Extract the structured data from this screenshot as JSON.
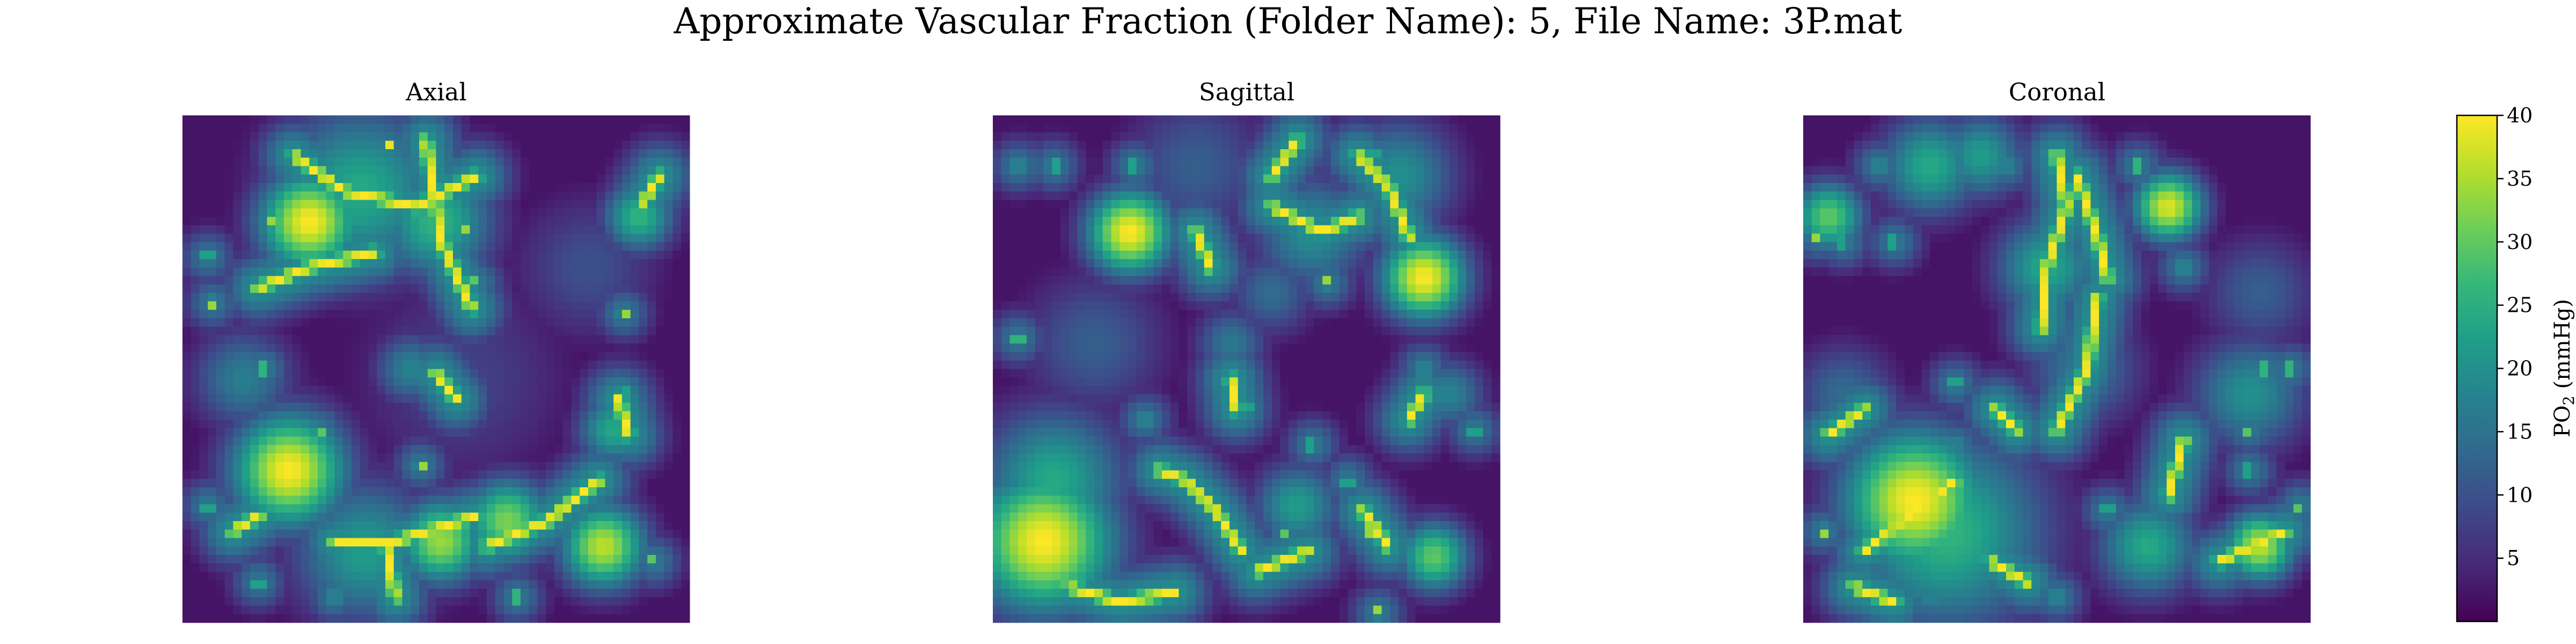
{
  "suptitle": "Approximate Vascular Fraction (Folder Name): 5, File Name: 3P.mat",
  "colors": {
    "colormap": "viridis",
    "viridis_stops": [
      "#440154",
      "#482878",
      "#3e4989",
      "#31688e",
      "#26828e",
      "#1f9e89",
      "#35b779",
      "#6ece58",
      "#b5de2b",
      "#fde725"
    ]
  },
  "chart_data": [
    {
      "type": "heatmap",
      "title": "Axial",
      "colormap": "viridis",
      "value_range": [
        0,
        40
      ],
      "axes_visible": false,
      "blobs": [
        {
          "x": 0.25,
          "y": 0.21,
          "r": 0.07,
          "v": 40
        },
        {
          "x": 0.21,
          "y": 0.7,
          "r": 0.08,
          "v": 40
        },
        {
          "x": 0.51,
          "y": 0.84,
          "r": 0.06,
          "v": 34
        },
        {
          "x": 0.83,
          "y": 0.85,
          "r": 0.06,
          "v": 36
        },
        {
          "x": 0.35,
          "y": 0.15,
          "r": 0.12,
          "v": 24
        },
        {
          "x": 0.5,
          "y": 0.21,
          "r": 0.08,
          "v": 26
        },
        {
          "x": 0.9,
          "y": 0.2,
          "r": 0.05,
          "v": 26
        },
        {
          "x": 0.64,
          "y": 0.8,
          "r": 0.06,
          "v": 32
        },
        {
          "x": 0.36,
          "y": 0.86,
          "r": 0.1,
          "v": 22
        },
        {
          "x": 0.12,
          "y": 0.52,
          "r": 0.07,
          "v": 17
        },
        {
          "x": 0.45,
          "y": 0.5,
          "r": 0.05,
          "v": 18
        },
        {
          "x": 0.85,
          "y": 0.62,
          "r": 0.05,
          "v": 24
        },
        {
          "x": 0.55,
          "y": 0.52,
          "r": 0.15,
          "v": 8
        },
        {
          "x": 0.8,
          "y": 0.3,
          "r": 0.1,
          "v": 10
        }
      ],
      "vessels": [
        [
          0.22,
          0.08,
          0.32,
          0.15,
          0.46,
          0.18,
          0.58,
          0.12
        ],
        [
          0.15,
          0.34,
          0.25,
          0.3,
          0.38,
          0.27
        ],
        [
          0.48,
          0.05,
          0.51,
          0.25,
          0.57,
          0.38
        ],
        [
          0.3,
          0.84,
          0.42,
          0.84,
          0.58,
          0.79
        ],
        [
          0.6,
          0.85,
          0.72,
          0.8,
          0.82,
          0.72
        ],
        [
          0.86,
          0.56,
          0.88,
          0.63
        ],
        [
          0.5,
          0.51,
          0.54,
          0.56
        ],
        [
          0.1,
          0.82,
          0.15,
          0.79
        ],
        [
          0.91,
          0.17,
          0.94,
          0.12
        ],
        [
          0.4,
          0.84,
          0.42,
          0.95
        ]
      ],
      "dots": [
        [
          0.05,
          0.28
        ],
        [
          0.06,
          0.37
        ],
        [
          0.17,
          0.21
        ],
        [
          0.41,
          0.06
        ],
        [
          0.56,
          0.23
        ],
        [
          0.58,
          0.33
        ],
        [
          0.53,
          0.55
        ],
        [
          0.16,
          0.5
        ],
        [
          0.87,
          0.39
        ],
        [
          0.93,
          0.2
        ],
        [
          0.87,
          0.55
        ],
        [
          0.47,
          0.69
        ],
        [
          0.27,
          0.62
        ],
        [
          0.05,
          0.77
        ],
        [
          0.93,
          0.88
        ],
        [
          0.15,
          0.92
        ],
        [
          0.3,
          0.95
        ],
        [
          0.66,
          0.95
        ]
      ]
    },
    {
      "type": "heatmap",
      "title": "Sagittal",
      "colormap": "viridis",
      "value_range": [
        0,
        40
      ],
      "axes_visible": false,
      "blobs": [
        {
          "x": 0.1,
          "y": 0.84,
          "r": 0.1,
          "v": 40
        },
        {
          "x": 0.27,
          "y": 0.23,
          "r": 0.06,
          "v": 40
        },
        {
          "x": 0.85,
          "y": 0.32,
          "r": 0.06,
          "v": 40
        },
        {
          "x": 0.12,
          "y": 0.72,
          "r": 0.1,
          "v": 24
        },
        {
          "x": 0.63,
          "y": 0.23,
          "r": 0.08,
          "v": 20
        },
        {
          "x": 0.8,
          "y": 0.12,
          "r": 0.08,
          "v": 20
        },
        {
          "x": 0.87,
          "y": 0.87,
          "r": 0.05,
          "v": 30
        },
        {
          "x": 0.47,
          "y": 0.45,
          "r": 0.05,
          "v": 16
        },
        {
          "x": 0.6,
          "y": 0.77,
          "r": 0.06,
          "v": 22
        },
        {
          "x": 0.55,
          "y": 0.35,
          "r": 0.06,
          "v": 14
        },
        {
          "x": 0.4,
          "y": 0.1,
          "r": 0.1,
          "v": 12
        },
        {
          "x": 0.9,
          "y": 0.55,
          "r": 0.05,
          "v": 18
        },
        {
          "x": 0.2,
          "y": 0.45,
          "r": 0.1,
          "v": 12
        }
      ],
      "vessels": [
        [
          0.33,
          0.7,
          0.38,
          0.72,
          0.44,
          0.78,
          0.49,
          0.86
        ],
        [
          0.55,
          0.18,
          0.65,
          0.23,
          0.72,
          0.2
        ],
        [
          0.72,
          0.08,
          0.78,
          0.14,
          0.82,
          0.24
        ],
        [
          0.47,
          0.52,
          0.48,
          0.58
        ],
        [
          0.15,
          0.93,
          0.25,
          0.96,
          0.36,
          0.94
        ],
        [
          0.52,
          0.9,
          0.62,
          0.86
        ],
        [
          0.73,
          0.78,
          0.78,
          0.85
        ],
        [
          0.82,
          0.6,
          0.85,
          0.55
        ],
        [
          0.6,
          0.05,
          0.55,
          0.12
        ],
        [
          0.4,
          0.23,
          0.43,
          0.3
        ]
      ],
      "dots": [
        [
          0.05,
          0.1
        ],
        [
          0.12,
          0.1
        ],
        [
          0.28,
          0.1
        ],
        [
          0.55,
          0.1
        ],
        [
          0.75,
          0.08
        ],
        [
          0.66,
          0.33
        ],
        [
          0.05,
          0.44
        ],
        [
          0.3,
          0.6
        ],
        [
          0.63,
          0.65
        ],
        [
          0.7,
          0.72
        ],
        [
          0.74,
          0.82
        ],
        [
          0.85,
          0.5
        ],
        [
          0.5,
          0.58
        ],
        [
          0.58,
          0.83
        ],
        [
          0.76,
          0.98
        ],
        [
          0.42,
          0.28
        ],
        [
          0.95,
          0.62
        ]
      ]
    },
    {
      "type": "heatmap",
      "title": "Coronal",
      "colormap": "viridis",
      "value_range": [
        0,
        40
      ],
      "axes_visible": false,
      "blobs": [
        {
          "x": 0.22,
          "y": 0.76,
          "r": 0.1,
          "v": 40
        },
        {
          "x": 0.72,
          "y": 0.18,
          "r": 0.05,
          "v": 38
        },
        {
          "x": 0.9,
          "y": 0.85,
          "r": 0.05,
          "v": 36
        },
        {
          "x": 0.05,
          "y": 0.2,
          "r": 0.05,
          "v": 30
        },
        {
          "x": 0.25,
          "y": 0.1,
          "r": 0.07,
          "v": 24
        },
        {
          "x": 0.35,
          "y": 0.08,
          "r": 0.06,
          "v": 22
        },
        {
          "x": 0.48,
          "y": 0.3,
          "r": 0.07,
          "v": 24
        },
        {
          "x": 0.55,
          "y": 0.5,
          "r": 0.08,
          "v": 16
        },
        {
          "x": 0.88,
          "y": 0.55,
          "r": 0.08,
          "v": 20
        },
        {
          "x": 0.28,
          "y": 0.82,
          "r": 0.14,
          "v": 26
        },
        {
          "x": 0.68,
          "y": 0.85,
          "r": 0.07,
          "v": 24
        },
        {
          "x": 0.08,
          "y": 0.55,
          "r": 0.07,
          "v": 14
        },
        {
          "x": 0.9,
          "y": 0.35,
          "r": 0.08,
          "v": 12
        }
      ],
      "vessels": [
        [
          0.5,
          0.08,
          0.52,
          0.18,
          0.48,
          0.3,
          0.47,
          0.42
        ],
        [
          0.54,
          0.12,
          0.58,
          0.24,
          0.6,
          0.32
        ],
        [
          0.58,
          0.36,
          0.56,
          0.5,
          0.5,
          0.62
        ],
        [
          0.05,
          0.63,
          0.12,
          0.58
        ],
        [
          0.3,
          0.72,
          0.22,
          0.78,
          0.12,
          0.86
        ],
        [
          0.37,
          0.88,
          0.44,
          0.92
        ],
        [
          0.75,
          0.64,
          0.72,
          0.75
        ],
        [
          0.82,
          0.88,
          0.95,
          0.82
        ],
        [
          0.1,
          0.93,
          0.18,
          0.96
        ],
        [
          0.38,
          0.58,
          0.42,
          0.62
        ]
      ],
      "dots": [
        [
          0.03,
          0.24
        ],
        [
          0.08,
          0.25
        ],
        [
          0.18,
          0.25
        ],
        [
          0.15,
          0.1
        ],
        [
          0.4,
          0.1
        ],
        [
          0.66,
          0.1
        ],
        [
          0.3,
          0.65
        ],
        [
          0.3,
          0.53
        ],
        [
          0.75,
          0.3
        ],
        [
          0.91,
          0.5
        ],
        [
          0.88,
          0.62
        ],
        [
          0.88,
          0.7
        ],
        [
          0.6,
          0.78
        ],
        [
          0.5,
          0.95
        ],
        [
          0.25,
          0.95
        ],
        [
          0.98,
          0.77
        ],
        [
          0.96,
          0.5
        ],
        [
          0.04,
          0.82
        ]
      ]
    }
  ],
  "colorbar": {
    "label_text": "PO",
    "label_subscript": "2",
    "label_unit": " (mmHg)",
    "range": [
      0,
      40
    ],
    "ticks": [
      {
        "value": 5,
        "label": "5"
      },
      {
        "value": 10,
        "label": "10"
      },
      {
        "value": 15,
        "label": "15"
      },
      {
        "value": 20,
        "label": "20"
      },
      {
        "value": 25,
        "label": "25"
      },
      {
        "value": 30,
        "label": "30"
      },
      {
        "value": 35,
        "label": "35"
      },
      {
        "value": 40,
        "label": "40"
      }
    ]
  }
}
